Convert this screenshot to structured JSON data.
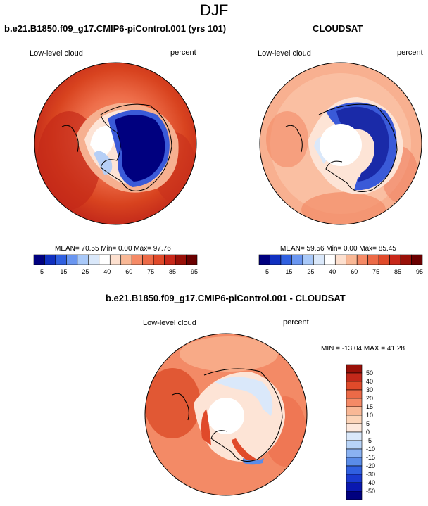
{
  "page_title": "DJF",
  "panels": [
    {
      "title": "b.e21.B1850.f09_g17.CMIP6-piControl.001 (yrs 101)",
      "left_label": "Low-level cloud",
      "right_label": "percent",
      "stats": "MEAN= 70.55  Min=   0.00  Max=  97.76"
    },
    {
      "title": "CLOUDSAT",
      "left_label": "Low-level cloud",
      "right_label": "percent",
      "stats": "MEAN= 59.56  Min=   0.00  Max=  85.45"
    },
    {
      "title": "b.e21.B1850.f09_g17.CMIP6-piControl.001 - CLOUDSAT",
      "left_label": "Low-level cloud",
      "right_label": "percent",
      "stats": "MIN = -13.04 MAX =  41.28"
    }
  ],
  "colorbar_horizontal": {
    "levels": [
      "5",
      "15",
      "25",
      "40",
      "60",
      "75",
      "85",
      "95"
    ],
    "colors": [
      "#00007f",
      "#1030c0",
      "#3060e0",
      "#6a96f0",
      "#a8c8f8",
      "#dae8fa",
      "#ffffff",
      "#fde0cf",
      "#f9b896",
      "#f58a66",
      "#ec6a47",
      "#e04a2a",
      "#c8281a",
      "#991008",
      "#6a0000"
    ]
  },
  "colorbar_vertical": {
    "levels": [
      "50",
      "40",
      "30",
      "20",
      "15",
      "10",
      "5",
      "0",
      "-5",
      "-10",
      "-15",
      "-20",
      "-30",
      "-40",
      "-50"
    ],
    "colors": [
      "#991008",
      "#c2281a",
      "#e04a2a",
      "#ec6a47",
      "#f58a66",
      "#f9b896",
      "#fcd4b8",
      "#fde8dc",
      "#dae8fa",
      "#b8d4f8",
      "#8ab2f2",
      "#5a8ce8",
      "#3060e0",
      "#1a3ad0",
      "#0a18b0",
      "#00007f"
    ]
  }
}
